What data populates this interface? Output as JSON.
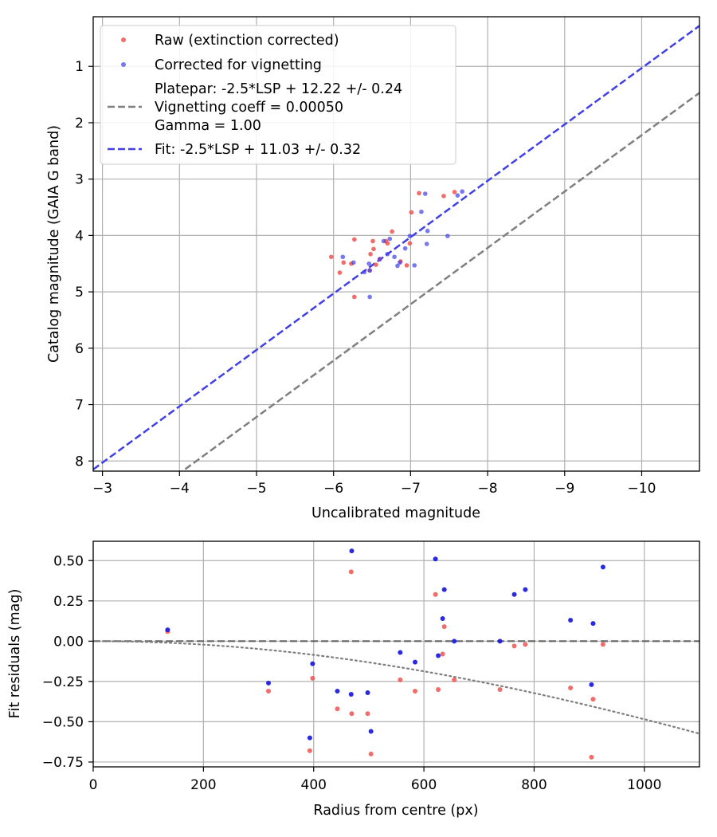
{
  "chart_data": [
    {
      "type": "scatter",
      "xlabel": "Uncalibrated magnitude",
      "ylabel": "Catalog magnitude (GAIA G band)",
      "xlim": [
        -2.88,
        -10.75
      ],
      "ylim": [
        8.18,
        0.12
      ],
      "x_ticks": [
        -3,
        -4,
        -5,
        -6,
        -7,
        -8,
        -9,
        -10
      ],
      "x_tick_labels": [
        "−3",
        "−4",
        "−5",
        "−6",
        "−7",
        "−8",
        "−9",
        "−10"
      ],
      "y_ticks": [
        1,
        2,
        3,
        4,
        5,
        6,
        7,
        8
      ],
      "y_tick_labels": [
        "1",
        "2",
        "3",
        "4",
        "5",
        "6",
        "7",
        "8"
      ],
      "grid": true,
      "legend_position": "top-left",
      "legend": {
        "raw": "Raw (extinction corrected)",
        "corrected": "Corrected for vignetting",
        "platepar_1": "Platepar: -2.5*LSP + 12.22 +/- 0.24",
        "platepar_2": "Vignetting coeff = 0.00050",
        "platepar_3": "Gamma = 1.00",
        "fit": "Fit: -2.5*LSP + 11.03 +/- 0.32"
      },
      "lines": [
        {
          "name": "platepar",
          "slope": 1.0,
          "intercept": 12.22,
          "color": "#7f7f7f",
          "style": "dashed"
        },
        {
          "name": "fit",
          "slope": 1.0,
          "intercept": 11.03,
          "color": "#4040e6",
          "style": "dashed"
        }
      ],
      "series": [
        {
          "name": "Raw (extinction corrected)",
          "color": "#ef5350",
          "points": [
            [
              -5.97,
              4.38
            ],
            [
              -6.08,
              4.66
            ],
            [
              -6.13,
              4.48
            ],
            [
              -6.23,
              4.5
            ],
            [
              -6.27,
              4.07
            ],
            [
              -6.27,
              5.09
            ],
            [
              -6.47,
              4.62
            ],
            [
              -6.48,
              4.33
            ],
            [
              -6.51,
              4.1
            ],
            [
              -6.52,
              4.24
            ],
            [
              -6.55,
              4.52
            ],
            [
              -6.6,
              4.42
            ],
            [
              -6.68,
              4.1
            ],
            [
              -6.7,
              4.14
            ],
            [
              -6.76,
              3.93
            ],
            [
              -6.87,
              4.46
            ],
            [
              -6.95,
              4.53
            ],
            [
              -6.99,
              4.14
            ],
            [
              -7.01,
              3.59
            ],
            [
              -7.11,
              3.25
            ],
            [
              -7.43,
              3.3
            ],
            [
              -7.57,
              3.23
            ]
          ]
        },
        {
          "name": "Corrected for vignetting",
          "color": "#3f3fe8",
          "points": [
            [
              -6.12,
              4.38
            ],
            [
              -6.26,
              4.48
            ],
            [
              -6.4,
              4.65
            ],
            [
              -6.46,
              4.5
            ],
            [
              -6.47,
              4.62
            ],
            [
              -6.47,
              5.09
            ],
            [
              -6.6,
              4.42
            ],
            [
              -6.65,
              4.1
            ],
            [
              -6.7,
              4.33
            ],
            [
              -6.73,
              4.06
            ],
            [
              -6.79,
              4.38
            ],
            [
              -6.83,
              4.54
            ],
            [
              -6.86,
              4.48
            ],
            [
              -6.93,
              4.23
            ],
            [
              -6.99,
              4.01
            ],
            [
              -7.05,
              4.53
            ],
            [
              -7.14,
              3.58
            ],
            [
              -7.19,
              3.26
            ],
            [
              -7.21,
              4.15
            ],
            [
              -7.22,
              3.92
            ],
            [
              -7.48,
              4.01
            ],
            [
              -7.61,
              3.29
            ],
            [
              -7.67,
              3.22
            ]
          ]
        }
      ]
    },
    {
      "type": "scatter",
      "xlabel": "Radius from centre (px)",
      "ylabel": "Fit residuals (mag)",
      "xlim": [
        0,
        1100
      ],
      "ylim": [
        -0.78,
        0.62
      ],
      "x_ticks": [
        0,
        200,
        400,
        600,
        800,
        1000
      ],
      "x_tick_labels": [
        "0",
        "200",
        "400",
        "600",
        "800",
        "1000"
      ],
      "y_ticks": [
        0.5,
        0.25,
        0.0,
        -0.25,
        -0.5,
        -0.75
      ],
      "y_tick_labels": [
        "0.50",
        "0.25",
        "0.00",
        "−0.25",
        "−0.50",
        "−0.75"
      ],
      "grid": true,
      "zero_line": {
        "y": 0,
        "color": "#666666",
        "style": "dashed"
      },
      "vignetting_curve": {
        "coeff": 0.0005,
        "color": "#7f7f7f",
        "style": "dotted"
      },
      "series": [
        {
          "name": "Raw",
          "color": "#ef5350",
          "points": [
            [
              135,
              0.06
            ],
            [
              318,
              -0.31
            ],
            [
              393,
              -0.68
            ],
            [
              398,
              -0.23
            ],
            [
              443,
              -0.42
            ],
            [
              468,
              0.43
            ],
            [
              469,
              -0.45
            ],
            [
              498,
              -0.45
            ],
            [
              504,
              -0.7
            ],
            [
              557,
              -0.24
            ],
            [
              584,
              -0.31
            ],
            [
              621,
              0.29
            ],
            [
              626,
              -0.3
            ],
            [
              634,
              -0.08
            ],
            [
              637,
              0.09
            ],
            [
              655,
              -0.24
            ],
            [
              738,
              -0.3
            ],
            [
              764,
              -0.03
            ],
            [
              784,
              -0.02
            ],
            [
              866,
              -0.29
            ],
            [
              904,
              -0.72
            ],
            [
              907,
              -0.36
            ],
            [
              925,
              -0.02
            ]
          ]
        },
        {
          "name": "Corrected",
          "color": "#1f1fe0",
          "points": [
            [
              135,
              0.07
            ],
            [
              318,
              -0.26
            ],
            [
              393,
              -0.6
            ],
            [
              398,
              -0.14
            ],
            [
              443,
              -0.31
            ],
            [
              468,
              -0.33
            ],
            [
              469,
              0.56
            ],
            [
              498,
              -0.32
            ],
            [
              504,
              -0.56
            ],
            [
              557,
              -0.07
            ],
            [
              584,
              -0.13
            ],
            [
              621,
              0.51
            ],
            [
              626,
              -0.09
            ],
            [
              634,
              0.14
            ],
            [
              637,
              0.32
            ],
            [
              655,
              0.0
            ],
            [
              738,
              0.0
            ],
            [
              764,
              0.29
            ],
            [
              784,
              0.32
            ],
            [
              866,
              0.13
            ],
            [
              904,
              -0.27
            ],
            [
              907,
              0.11
            ],
            [
              925,
              0.46
            ]
          ]
        }
      ]
    }
  ]
}
